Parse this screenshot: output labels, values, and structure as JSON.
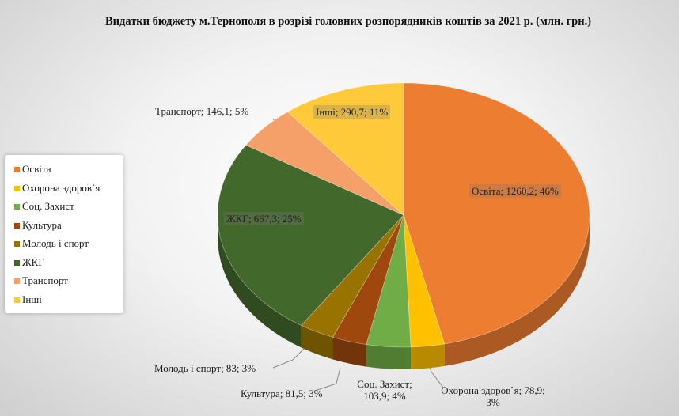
{
  "chart_data": {
    "type": "pie",
    "title": "Видатки бюджету м.Тернополя в розрізі головних розпорядників коштів за 2021 р. (млн. грн.)",
    "categories": [
      "Освіта",
      "Охорона здоров`я",
      "Соц. Захист",
      "Культура",
      "Молодь і спорт",
      "ЖКГ",
      "Транспорт",
      "Інші"
    ],
    "values": [
      1260.2,
      78.9,
      103.9,
      81.5,
      83,
      667.3,
      146.1,
      290.7
    ],
    "value_labels": [
      "Освіта; 1260,2; 46%",
      "Охорона здоров`я; 78,9; 3%",
      "Соц. Захист; 103,9; 4%",
      "Культура; 81,5; 3%",
      "Молодь і спорт; 83; 3%",
      "ЖКГ; 667,3; 25%",
      "Транспорт; 146,1; 5%",
      "Інші; 290,7; 11%"
    ],
    "colors": [
      "#ed7d31",
      "#ffc000",
      "#70ad47",
      "#9e480e",
      "#997300",
      "#43682b",
      "#f4a068",
      "#ffca3a"
    ],
    "legend": "left"
  }
}
